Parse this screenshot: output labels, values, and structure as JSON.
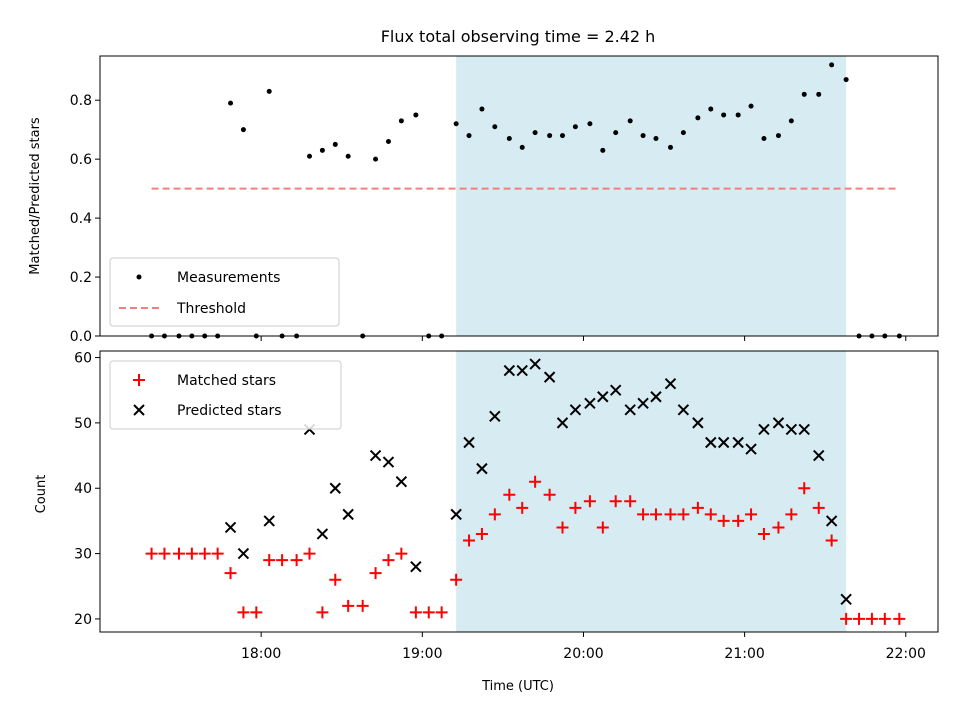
{
  "chart_data": [
    {
      "type": "scatter",
      "title": "Flux total observing time = 2.42 h",
      "xlabel": "",
      "ylabel": "Matched/Predicted stars",
      "ylim": [
        0,
        0.95
      ],
      "yticks": [
        0.0,
        0.2,
        0.4,
        0.6,
        0.8
      ],
      "ytick_labels": [
        "0.0",
        "0.2",
        "0.4",
        "0.6",
        "0.8"
      ],
      "shaded_interval": {
        "start": 19.21,
        "end": 21.63,
        "color": "#add8e6"
      },
      "legend": {
        "position": "lower-left",
        "entries": [
          {
            "label": "Measurements",
            "marker": "dot",
            "color": "#000000"
          },
          {
            "label": "Threshold",
            "marker": "dashed-line",
            "color": "#f08080"
          }
        ]
      },
      "series": [
        {
          "name": "Measurements",
          "color": "#000000",
          "x": [
            17.32,
            17.4,
            17.49,
            17.57,
            17.65,
            17.73,
            17.81,
            17.89,
            17.97,
            18.05,
            18.13,
            18.22,
            18.3,
            18.38,
            18.46,
            18.54,
            18.63,
            18.71,
            18.79,
            18.87,
            18.96,
            19.04,
            19.12,
            19.21,
            19.29,
            19.37,
            19.45,
            19.54,
            19.62,
            19.7,
            19.79,
            19.87,
            19.95,
            20.04,
            20.12,
            20.2,
            20.29,
            20.37,
            20.45,
            20.54,
            20.62,
            20.71,
            20.79,
            20.87,
            20.96,
            21.04,
            21.12,
            21.21,
            21.29,
            21.37,
            21.46,
            21.54,
            21.63,
            21.71,
            21.79,
            21.87,
            21.96
          ],
          "y": [
            0.0,
            0.0,
            0.0,
            0.0,
            0.0,
            0.0,
            0.79,
            0.7,
            0.0,
            0.83,
            0.0,
            0.0,
            0.61,
            0.63,
            0.65,
            0.61,
            0.0,
            0.6,
            0.66,
            0.73,
            0.75,
            0.0,
            0.0,
            0.72,
            0.68,
            0.77,
            0.71,
            0.67,
            0.64,
            0.69,
            0.68,
            0.68,
            0.71,
            0.72,
            0.63,
            0.69,
            0.73,
            0.68,
            0.67,
            0.64,
            0.69,
            0.74,
            0.77,
            0.75,
            0.75,
            0.78,
            0.67,
            0.68,
            0.73,
            0.82,
            0.82,
            0.92,
            0.87,
            0.0,
            0.0,
            0.0,
            0.0
          ]
        },
        {
          "name": "Threshold",
          "color": "#f08080",
          "x": [
            17.32,
            21.96
          ],
          "y": [
            0.5,
            0.5
          ]
        }
      ]
    },
    {
      "type": "scatter",
      "title": "",
      "xlabel": "Time (UTC)",
      "ylabel": "Count",
      "ylim": [
        18,
        61
      ],
      "yticks": [
        20,
        30,
        40,
        50,
        60
      ],
      "ytick_labels": [
        "20",
        "30",
        "40",
        "50",
        "60"
      ],
      "xlim": [
        17.0,
        22.2
      ],
      "xticks": [
        18,
        19,
        20,
        21,
        22
      ],
      "xtick_labels": [
        "18:00",
        "19:00",
        "20:00",
        "21:00",
        "22:00"
      ],
      "shaded_interval": {
        "start": 19.21,
        "end": 21.63,
        "color": "#add8e6"
      },
      "legend": {
        "position": "upper-left",
        "entries": [
          {
            "label": "Matched stars",
            "marker": "plus",
            "color": "#ff0000"
          },
          {
            "label": "Predicted stars",
            "marker": "x",
            "color": "#000000"
          }
        ]
      },
      "series": [
        {
          "name": "Matched stars",
          "color": "#ff0000",
          "x": [
            17.32,
            17.4,
            17.49,
            17.57,
            17.65,
            17.73,
            17.81,
            17.89,
            17.97,
            18.05,
            18.13,
            18.22,
            18.3,
            18.38,
            18.46,
            18.54,
            18.63,
            18.71,
            18.79,
            18.87,
            18.96,
            19.04,
            19.12,
            19.21,
            19.29,
            19.37,
            19.45,
            19.54,
            19.62,
            19.7,
            19.79,
            19.87,
            19.95,
            20.04,
            20.12,
            20.2,
            20.29,
            20.37,
            20.45,
            20.54,
            20.62,
            20.71,
            20.79,
            20.87,
            20.96,
            21.04,
            21.12,
            21.21,
            21.29,
            21.37,
            21.46,
            21.54,
            21.63,
            21.71,
            21.79,
            21.87,
            21.96
          ],
          "y": [
            30,
            30,
            30,
            30,
            30,
            30,
            27,
            21,
            21,
            29,
            29,
            29,
            30,
            21,
            26,
            22,
            22,
            27,
            29,
            30,
            21,
            21,
            21,
            26,
            32,
            33,
            36,
            39,
            37,
            41,
            39,
            34,
            37,
            38,
            34,
            38,
            38,
            36,
            36,
            36,
            36,
            37,
            36,
            35,
            35,
            36,
            33,
            34,
            36,
            40,
            37,
            32,
            20,
            20,
            20,
            20,
            20
          ]
        },
        {
          "name": "Predicted stars",
          "color": "#000000",
          "x": [
            17.81,
            17.89,
            18.05,
            18.3,
            18.38,
            18.46,
            18.54,
            18.71,
            18.79,
            18.87,
            18.96,
            19.21,
            19.29,
            19.37,
            19.45,
            19.54,
            19.62,
            19.7,
            19.79,
            19.87,
            19.95,
            20.04,
            20.12,
            20.2,
            20.29,
            20.37,
            20.45,
            20.54,
            20.62,
            20.71,
            20.79,
            20.87,
            20.96,
            21.04,
            21.12,
            21.21,
            21.29,
            21.37,
            21.46,
            21.54,
            21.63
          ],
          "y": [
            34,
            30,
            35,
            49,
            33,
            40,
            36,
            45,
            44,
            41,
            28,
            36,
            47,
            43,
            51,
            58,
            58,
            59,
            57,
            50,
            52,
            53,
            54,
            55,
            52,
            53,
            54,
            56,
            52,
            50,
            47,
            47,
            47,
            46,
            49,
            50,
            49,
            49,
            45,
            35,
            23
          ]
        }
      ]
    }
  ]
}
